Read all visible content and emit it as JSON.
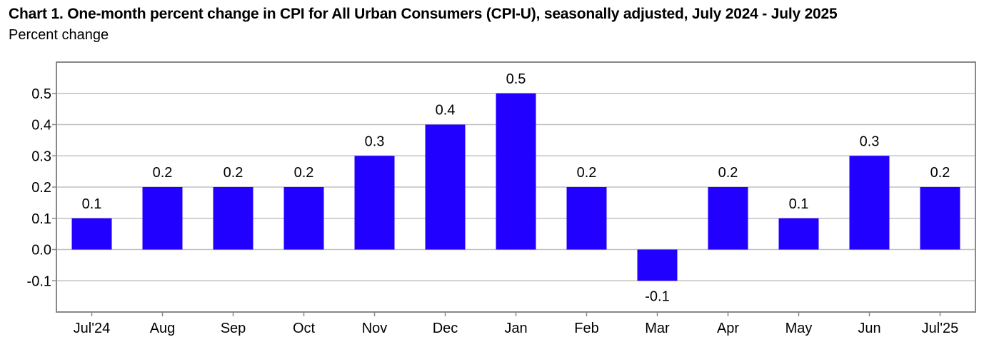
{
  "chart_data": {
    "type": "bar",
    "title": "Chart 1. One-month percent change in CPI for All Urban Consumers (CPI-U), seasonally adjusted, July 2024 - July 2025",
    "subtitle": "Percent change",
    "categories": [
      "Jul'24",
      "Aug",
      "Sep",
      "Oct",
      "Nov",
      "Dec",
      "Jan",
      "Feb",
      "Mar",
      "Apr",
      "May",
      "Jun",
      "Jul'25"
    ],
    "values": [
      0.1,
      0.2,
      0.2,
      0.2,
      0.3,
      0.4,
      0.5,
      0.2,
      -0.1,
      0.2,
      0.1,
      0.3,
      0.2
    ],
    "data_labels": [
      "0.1",
      "0.2",
      "0.2",
      "0.2",
      "0.3",
      "0.4",
      "0.5",
      "0.2",
      "-0.1",
      "0.2",
      "0.1",
      "0.3",
      "0.2"
    ],
    "yticks": [
      -0.1,
      0.0,
      0.1,
      0.2,
      0.3,
      0.4,
      0.5
    ],
    "ytick_labels": [
      "-0.1",
      "0.0",
      "0.1",
      "0.2",
      "0.3",
      "0.4",
      "0.5"
    ],
    "ylim": [
      -0.2,
      0.6
    ],
    "xlabel": "",
    "ylabel": "",
    "grid": true,
    "bar_color": "#2200ff",
    "grid_color": "#c0c0c0",
    "frame_color": "#888888"
  }
}
